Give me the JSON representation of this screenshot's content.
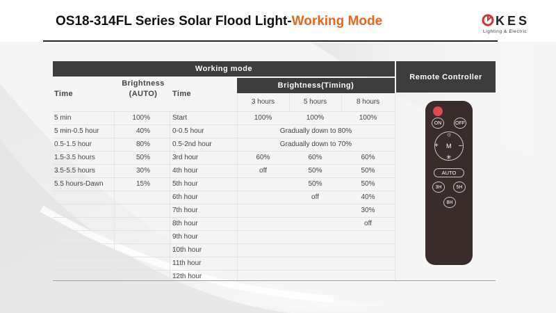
{
  "header": {
    "title_main": "OS18-314FL Series Solar Flood Light-",
    "title_accent": "Working Mode",
    "logo_text": "KES",
    "logo_tagline": "Lighting & Electric"
  },
  "colors": {
    "accent": "#e8651a",
    "header_fill": "#3d3d3d",
    "remote_body": "#3a2c2b",
    "power_button": "#e04a55"
  },
  "table": {
    "working_mode_label": "Working mode",
    "remote_label": "Remote Controller",
    "col_time": "Time",
    "col_brightness_auto_1": "Brightness",
    "col_brightness_auto_2": "(AUTO)",
    "col_time2": "Time",
    "col_brightness_timing": "Brightness(Timing)",
    "timing_cols": [
      "3 hours",
      "5 hours",
      "8 hours"
    ],
    "rows": [
      {
        "time": "5 min",
        "auto": "100%",
        "time2": "Start",
        "h3": "100%",
        "h5": "100%",
        "h8": "100%"
      },
      {
        "time": "5 min-0.5 hour",
        "auto": "40%",
        "time2": "0-0.5 hour",
        "span": "Gradually down to 80%"
      },
      {
        "time": "0.5-1.5 hour",
        "auto": "80%",
        "time2": "0.5-2nd hour",
        "span": "Gradually down to 70%"
      },
      {
        "time": "1.5-3.5 hours",
        "auto": "50%",
        "time2": "3rd hour",
        "h3": "60%",
        "h5": "60%",
        "h8": "60%"
      },
      {
        "time": "3.5-5.5 hours",
        "auto": "30%",
        "time2": "4th hour",
        "h3": "off",
        "h5": "50%",
        "h8": "50%"
      },
      {
        "time": "5.5 hours-Dawn",
        "auto": "15%",
        "time2": "5th hour",
        "h3": "",
        "h5": "50%",
        "h8": "50%"
      },
      {
        "time": "",
        "auto": "",
        "time2": "6th hour",
        "h3": "",
        "h5": "off",
        "h8": "40%"
      },
      {
        "time": "",
        "auto": "",
        "time2": "7th hour",
        "h3": "",
        "h5": "",
        "h8": "30%"
      },
      {
        "time": "",
        "auto": "",
        "time2": "8th hour",
        "h3": "",
        "h5": "",
        "h8": "off"
      },
      {
        "time": "",
        "auto": "",
        "time2": "9th hour",
        "h3": "",
        "h5": "",
        "h8": ""
      },
      {
        "time": "",
        "auto": "",
        "time2": "10th hour",
        "h3": "",
        "h5": "",
        "h8": ""
      },
      {
        "time": "",
        "auto": "",
        "time2": "11th hour",
        "h3": "",
        "h5": "",
        "h8": ""
      },
      {
        "time": "",
        "auto": "",
        "time2": "12th hour",
        "h3": "",
        "h5": "",
        "h8": ""
      }
    ]
  },
  "remote": {
    "on": "ON",
    "off": "OFF",
    "mode": "M",
    "plus": "+",
    "minus": "–",
    "bright_up_icon": "sun-icon",
    "bright_down_icon": "dim-sun-icon",
    "auto": "AUTO",
    "t3": "3H",
    "t5": "5H",
    "t8": "8H"
  }
}
